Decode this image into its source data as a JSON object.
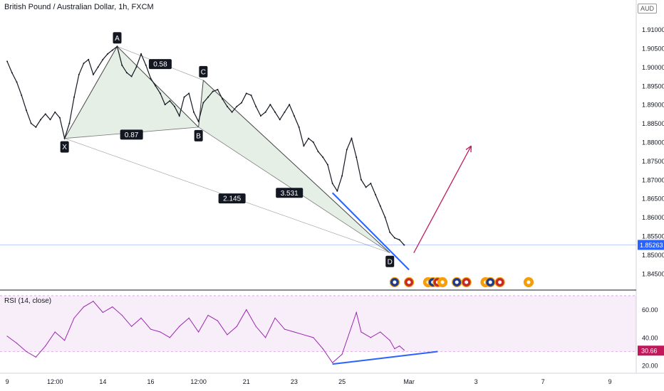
{
  "header": {
    "title": "British Pound / Australian Dollar, 1h, FXCM",
    "currency": "AUD"
  },
  "chart_data": [
    {
      "type": "line",
      "title": "British Pound / Australian Dollar, 1h, FXCM",
      "price_axis_ticks": [
        "1.91000",
        "1.90500",
        "1.90000",
        "1.89500",
        "1.89000",
        "1.88500",
        "1.88000",
        "1.87500",
        "1.87000",
        "1.86500",
        "1.86000",
        "1.85500",
        "1.85000",
        "1.84500"
      ],
      "price_axis_values": [
        1.91,
        1.905,
        1.9,
        1.895,
        1.89,
        1.885,
        1.88,
        1.875,
        1.87,
        1.865,
        1.86,
        1.855,
        1.85,
        1.845
      ],
      "ylim": [
        1.8425,
        1.9137
      ],
      "current_price": {
        "label": "1.85263",
        "value": 1.85263,
        "color": "#2962ff"
      },
      "time_axis_labels": [
        "9",
        "12:00",
        "14",
        "16",
        "12:00",
        "21",
        "23",
        "25",
        "Mar",
        "3",
        "7",
        "9"
      ],
      "time_axis_positions": [
        0,
        10,
        20,
        30,
        40,
        50,
        60,
        70,
        84,
        98,
        112,
        126
      ],
      "xlim": [
        -1.5,
        131.5
      ],
      "price_path": [
        {
          "i": 0,
          "v": 1.9015
        },
        {
          "i": 1,
          "v": 1.8985
        },
        {
          "i": 2,
          "v": 1.896
        },
        {
          "i": 3,
          "v": 1.8925
        },
        {
          "i": 4,
          "v": 1.8885
        },
        {
          "i": 5,
          "v": 1.885
        },
        {
          "i": 6,
          "v": 1.884
        },
        {
          "i": 7,
          "v": 1.886
        },
        {
          "i": 8,
          "v": 1.8875
        },
        {
          "i": 9,
          "v": 1.886
        },
        {
          "i": 10,
          "v": 1.888
        },
        {
          "i": 11,
          "v": 1.8865
        },
        {
          "i": 12,
          "v": 1.881
        },
        {
          "i": 13,
          "v": 1.885
        },
        {
          "i": 14,
          "v": 1.892
        },
        {
          "i": 15,
          "v": 1.898
        },
        {
          "i": 16,
          "v": 1.901
        },
        {
          "i": 17,
          "v": 1.902
        },
        {
          "i": 18,
          "v": 1.898
        },
        {
          "i": 19,
          "v": 1.9
        },
        {
          "i": 20,
          "v": 1.902
        },
        {
          "i": 21,
          "v": 1.9035
        },
        {
          "i": 22,
          "v": 1.9045
        },
        {
          "i": 23,
          "v": 1.9055
        },
        {
          "i": 24,
          "v": 1.9005
        },
        {
          "i": 25,
          "v": 1.8985
        },
        {
          "i": 26,
          "v": 1.8975
        },
        {
          "i": 27,
          "v": 1.9
        },
        {
          "i": 28,
          "v": 1.9035
        },
        {
          "i": 29,
          "v": 1.9005
        },
        {
          "i": 30,
          "v": 1.897
        },
        {
          "i": 31,
          "v": 1.895
        },
        {
          "i": 32,
          "v": 1.893
        },
        {
          "i": 33,
          "v": 1.89
        },
        {
          "i": 34,
          "v": 1.891
        },
        {
          "i": 35,
          "v": 1.8895
        },
        {
          "i": 36,
          "v": 1.887
        },
        {
          "i": 37,
          "v": 1.892
        },
        {
          "i": 38,
          "v": 1.893
        },
        {
          "i": 39,
          "v": 1.888
        },
        {
          "i": 40,
          "v": 1.8855
        },
        {
          "i": 41,
          "v": 1.8905
        },
        {
          "i": 42,
          "v": 1.892
        },
        {
          "i": 43,
          "v": 1.8935
        },
        {
          "i": 44,
          "v": 1.894
        },
        {
          "i": 45,
          "v": 1.8915
        },
        {
          "i": 46,
          "v": 1.8895
        },
        {
          "i": 47,
          "v": 1.888
        },
        {
          "i": 48,
          "v": 1.8895
        },
        {
          "i": 49,
          "v": 1.8905
        },
        {
          "i": 50,
          "v": 1.893
        },
        {
          "i": 51,
          "v": 1.8925
        },
        {
          "i": 52,
          "v": 1.8895
        },
        {
          "i": 53,
          "v": 1.887
        },
        {
          "i": 54,
          "v": 1.888
        },
        {
          "i": 55,
          "v": 1.89
        },
        {
          "i": 56,
          "v": 1.888
        },
        {
          "i": 57,
          "v": 1.886
        },
        {
          "i": 58,
          "v": 1.888
        },
        {
          "i": 59,
          "v": 1.89
        },
        {
          "i": 60,
          "v": 1.887
        },
        {
          "i": 61,
          "v": 1.884
        },
        {
          "i": 62,
          "v": 1.879
        },
        {
          "i": 63,
          "v": 1.881
        },
        {
          "i": 64,
          "v": 1.88
        },
        {
          "i": 65,
          "v": 1.8775
        },
        {
          "i": 66,
          "v": 1.876
        },
        {
          "i": 67,
          "v": 1.874
        },
        {
          "i": 68,
          "v": 1.869
        },
        {
          "i": 69,
          "v": 1.867
        },
        {
          "i": 70,
          "v": 1.871
        },
        {
          "i": 71,
          "v": 1.878
        },
        {
          "i": 72,
          "v": 1.881
        },
        {
          "i": 73,
          "v": 1.876
        },
        {
          "i": 74,
          "v": 1.87
        },
        {
          "i": 75,
          "v": 1.868
        },
        {
          "i": 76,
          "v": 1.869
        },
        {
          "i": 77,
          "v": 1.866
        },
        {
          "i": 78,
          "v": 1.863
        },
        {
          "i": 79,
          "v": 1.86
        },
        {
          "i": 80,
          "v": 1.856
        },
        {
          "i": 81,
          "v": 1.8545
        },
        {
          "i": 82,
          "v": 1.854
        },
        {
          "i": 83,
          "v": 1.8526
        }
      ],
      "pattern_color": "#2e7d32",
      "pattern_points": [
        {
          "name": "X",
          "i": 12,
          "v": 1.881
        },
        {
          "name": "A",
          "i": 23,
          "v": 1.9055
        },
        {
          "name": "B",
          "i": 40,
          "v": 1.884
        },
        {
          "name": "C",
          "i": 41,
          "v": 1.8965
        },
        {
          "name": "D",
          "i": 80,
          "v": 1.8505
        }
      ],
      "ratio_labels": [
        {
          "text": "0.58",
          "i": 32,
          "v": 1.9008
        },
        {
          "text": "0.87",
          "i": 26,
          "v": 1.882
        },
        {
          "text": "2.145",
          "i": 47,
          "v": 1.865
        },
        {
          "text": "3.531",
          "i": 59,
          "v": 1.8665
        }
      ],
      "trendline_color": "#2962ff",
      "price_trendline": {
        "from": {
          "i": 68,
          "v": 1.8665
        },
        "to": {
          "i": 84,
          "v": 1.846
        }
      },
      "projection_color": "#c2185b",
      "projection_arrow": {
        "from": {
          "i": 85,
          "v": 1.8505
        },
        "to": {
          "i": 97,
          "v": 1.879
        }
      },
      "event_markers": [
        81,
        84,
        88,
        89,
        90,
        91,
        94,
        96,
        100,
        101,
        103,
        109
      ],
      "event_colors": [
        "#1e3a8a",
        "#c62828",
        "#f59e0b"
      ]
    },
    {
      "type": "line",
      "title": "RSI (14, close)",
      "ylim": [
        16,
        72
      ],
      "yticks": [
        60,
        40,
        20
      ],
      "ytick_labels": [
        "60.00",
        "40.00",
        "20.00"
      ],
      "band": [
        30,
        70
      ],
      "current_value": {
        "label": "30.66",
        "value": 30.66,
        "color": "#c2185b"
      },
      "line_color": "#9c27b0",
      "rsi_path": [
        {
          "i": 0,
          "v": 41
        },
        {
          "i": 2,
          "v": 36
        },
        {
          "i": 4,
          "v": 30
        },
        {
          "i": 6,
          "v": 26
        },
        {
          "i": 8,
          "v": 34
        },
        {
          "i": 10,
          "v": 44
        },
        {
          "i": 12,
          "v": 38
        },
        {
          "i": 14,
          "v": 54
        },
        {
          "i": 16,
          "v": 62
        },
        {
          "i": 18,
          "v": 66
        },
        {
          "i": 20,
          "v": 58
        },
        {
          "i": 22,
          "v": 62
        },
        {
          "i": 24,
          "v": 56
        },
        {
          "i": 26,
          "v": 48
        },
        {
          "i": 28,
          "v": 54
        },
        {
          "i": 30,
          "v": 46
        },
        {
          "i": 32,
          "v": 44
        },
        {
          "i": 34,
          "v": 40
        },
        {
          "i": 36,
          "v": 48
        },
        {
          "i": 38,
          "v": 54
        },
        {
          "i": 40,
          "v": 44
        },
        {
          "i": 42,
          "v": 56
        },
        {
          "i": 44,
          "v": 52
        },
        {
          "i": 46,
          "v": 42
        },
        {
          "i": 48,
          "v": 48
        },
        {
          "i": 50,
          "v": 60
        },
        {
          "i": 52,
          "v": 48
        },
        {
          "i": 54,
          "v": 40
        },
        {
          "i": 56,
          "v": 54
        },
        {
          "i": 58,
          "v": 46
        },
        {
          "i": 60,
          "v": 44
        },
        {
          "i": 62,
          "v": 42
        },
        {
          "i": 64,
          "v": 40
        },
        {
          "i": 66,
          "v": 32
        },
        {
          "i": 68,
          "v": 22
        },
        {
          "i": 70,
          "v": 28
        },
        {
          "i": 72,
          "v": 48
        },
        {
          "i": 73,
          "v": 58
        },
        {
          "i": 74,
          "v": 44
        },
        {
          "i": 76,
          "v": 40
        },
        {
          "i": 78,
          "v": 44
        },
        {
          "i": 80,
          "v": 38
        },
        {
          "i": 81,
          "v": 32
        },
        {
          "i": 82,
          "v": 34
        },
        {
          "i": 83,
          "v": 31
        }
      ],
      "rsi_trendline": {
        "from": {
          "i": 68,
          "v": 21
        },
        "to": {
          "i": 90,
          "v": 30
        }
      }
    }
  ]
}
